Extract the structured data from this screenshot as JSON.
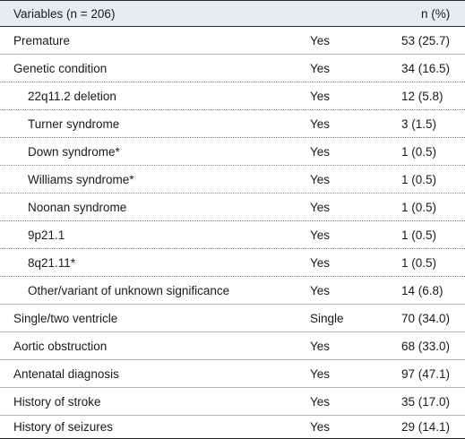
{
  "header": {
    "variables": "Variables (n = 206)",
    "n_pct": "n (%)"
  },
  "rows": [
    {
      "label": "Premature",
      "value": "Yes",
      "n": "53 (25.7)"
    },
    {
      "label": "Genetic condition",
      "value": "Yes",
      "n": "34 (16.5)"
    },
    {
      "label": "22q11.2 deletion",
      "value": "Yes",
      "n": "12 (5.8)"
    },
    {
      "label": "Turner syndrome",
      "value": "Yes",
      "n": "3 (1.5)"
    },
    {
      "label": "Down syndrome*",
      "value": "Yes",
      "n": "1 (0.5)"
    },
    {
      "label": "Williams syndrome*",
      "value": "Yes",
      "n": "1 (0.5)"
    },
    {
      "label": "Noonan syndrome",
      "value": "Yes",
      "n": "1 (0.5)"
    },
    {
      "label": "9p21.1",
      "value": "Yes",
      "n": "1 (0.5)"
    },
    {
      "label": "8q21.11*",
      "value": "Yes",
      "n": "1 (0.5)"
    },
    {
      "label": "Other/variant of unknown significance",
      "value": "Yes",
      "n": "14 (6.8)"
    },
    {
      "label": "Single/two ventricle",
      "value": "Single",
      "n": "70 (34.0)"
    },
    {
      "label": "Aortic obstruction",
      "value": "Yes",
      "n": "68 (33.0)"
    },
    {
      "label": "Antenatal diagnosis",
      "value": "Yes",
      "n": "97 (47.1)"
    },
    {
      "label": "History of stroke",
      "value": "Yes",
      "n": "35 (17.0)"
    },
    {
      "label": "History of seizures",
      "value": "Yes",
      "n": "29 (14.1)"
    }
  ]
}
